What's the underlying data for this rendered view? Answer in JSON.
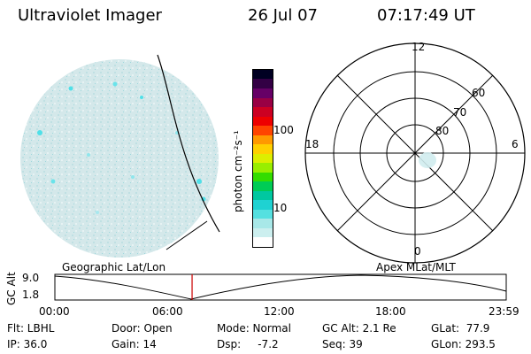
{
  "header": {
    "instrument": "Ultraviolet Imager",
    "date": "26 Jul 07",
    "time": "07:17:49 UT"
  },
  "colorbar": {
    "label": "photon cm⁻²s⁻¹",
    "ticks": [
      "100",
      "10"
    ],
    "colors": [
      "#ffffff",
      "#ccefef",
      "#a8e8e8",
      "#55e0e0",
      "#1fd2d2",
      "#00c8a0",
      "#00cc55",
      "#33dd00",
      "#99ee00",
      "#ddee00",
      "#ffd000",
      "#ff9900",
      "#ff4400",
      "#ee0000",
      "#cc0022",
      "#990044",
      "#660066",
      "#330044",
      "#000022"
    ]
  },
  "polar_plot": {
    "mlt_labels": {
      "top": "12",
      "left": "18",
      "right": "6",
      "bottom": "0"
    },
    "lat_labels": [
      "60",
      "70",
      "80"
    ]
  },
  "timeline": {
    "left_title": "Geographic Lat/Lon",
    "right_title": "Apex MLat/MLT",
    "y_axis_label": "GC Alt",
    "y_max": "9.0",
    "y_min": "1.8",
    "x_ticks": [
      "00:00",
      "06:00",
      "12:00",
      "18:00",
      "23:59"
    ],
    "current_time_fraction": 0.304
  },
  "info": {
    "filter": "Flt: LBHL",
    "ip": "IP: 36.0",
    "door": "Door: Open",
    "gain": "Gain: 14",
    "mode": "Mode: Normal",
    "dsp": "Dsp:     -7.2",
    "gc_alt": "GC Alt: 2.1 Re",
    "seq": "Seq: 39",
    "glat": "GLat:  77.9",
    "glon": "GLon: 293.5"
  }
}
